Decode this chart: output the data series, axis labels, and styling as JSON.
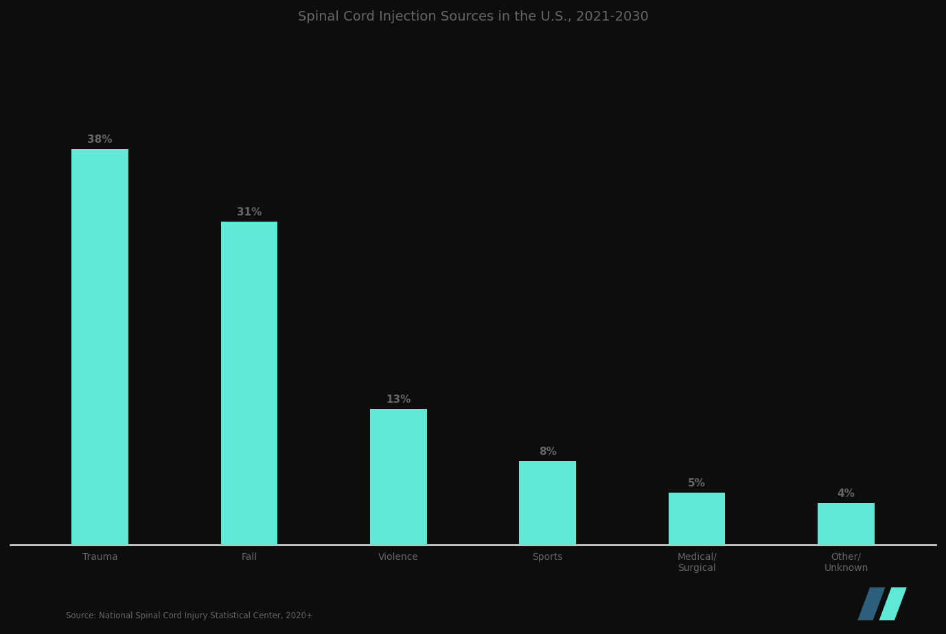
{
  "title": "Spinal Cord Injection Sources in the U.S., 2021-2030",
  "categories": [
    "Trauma\n ",
    "Fall\n ",
    "Violence\n ",
    "Sports\n ",
    "Medical/\nSurgical",
    "Other/\nUnknown"
  ],
  "values": [
    38,
    31,
    13,
    8,
    5,
    4
  ],
  "bar_labels": [
    "38%",
    "31%",
    "13%",
    "8%",
    "5%",
    "4%"
  ],
  "bar_color": "#5EEAD4",
  "background_color": "#0d0d0d",
  "text_color": "#666666",
  "title_color": "#666666",
  "spine_color": "#cccccc",
  "source_text": "Source: National Spinal Cord Injury Statistical Center, 2020+",
  "ylim": [
    0,
    48
  ]
}
